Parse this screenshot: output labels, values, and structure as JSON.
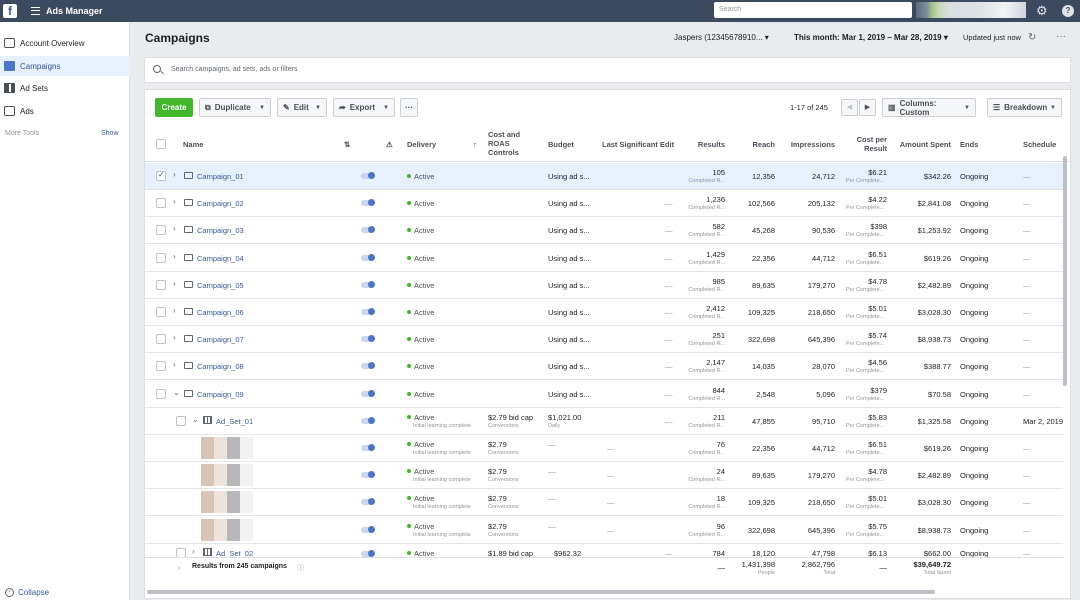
{
  "topbar": {
    "logo": "f",
    "app_title": "Ads Manager",
    "search_placeholder": "Search"
  },
  "sidebar": {
    "items": [
      {
        "label": "Account Overview",
        "icon": "overview-icon"
      },
      {
        "label": "Campaigns",
        "icon": "campaign-icon"
      },
      {
        "label": "Ad Sets",
        "icon": "adsets-icon"
      },
      {
        "label": "Ads",
        "icon": "ads-icon"
      }
    ],
    "more_tools": "More Tools",
    "show": "Show",
    "collapse": "Collapse"
  },
  "header": {
    "title": "Campaigns",
    "account": "Jaspers (12345678910... ▾",
    "date_range": "This month: Mar 1, 2019 – Mar 28, 2019 ▾",
    "updated": "Updated just now"
  },
  "search": {
    "placeholder": "Search campaigns, ad sets, ads or filters"
  },
  "toolbar": {
    "create": "Create",
    "duplicate": "Duplicate",
    "edit": "Edit",
    "export": "Export",
    "more": "···",
    "pagination": "1-17 of 245",
    "columns": "Columns: Custom",
    "breakdown": "Breakdown"
  },
  "columns": {
    "name": "Name",
    "delivery": "Delivery",
    "cost_roas_1": "Cost and",
    "cost_roas_2": "ROAS",
    "cost_roas_3": "Controls",
    "budget": "Budget",
    "last_edit": "Last Significant Edit",
    "results": "Results",
    "reach": "Reach",
    "impressions": "Impressions",
    "cpr_1": "Cost per",
    "cpr_2": "Result",
    "spent": "Amount Spent",
    "ends": "Ends",
    "schedule": "Schedule"
  },
  "campaigns": [
    {
      "name": "Campaign_01",
      "delivery": "Active",
      "budget": "Using ad s...",
      "edit": "",
      "results": "105",
      "reach": "12,356",
      "impressions": "24,712",
      "cpr": "$6.21",
      "spent": "$342.26",
      "ends": "Ongoing",
      "schedule": "—"
    },
    {
      "name": "Campaign_02",
      "delivery": "Active",
      "budget": "Using ad s...",
      "edit": "—",
      "results": "1,236",
      "reach": "102,566",
      "impressions": "205,132",
      "cpr": "$4.22",
      "spent": "$2,841.08",
      "ends": "Ongoing",
      "schedule": "—"
    },
    {
      "name": "Campaign_03",
      "delivery": "Active",
      "budget": "Using ad s...",
      "edit": "—",
      "results": "582",
      "reach": "45,268",
      "impressions": "90,536",
      "cpr": "$398",
      "spent": "$1,253.92",
      "ends": "Ongoing",
      "schedule": "—"
    },
    {
      "name": "Campaign_04",
      "delivery": "Active",
      "budget": "Using ad s...",
      "edit": "—",
      "results": "1,429",
      "reach": "22,356",
      "impressions": "44,712",
      "cpr": "$6.51",
      "spent": "$619.26",
      "ends": "Ongoing",
      "schedule": "—"
    },
    {
      "name": "Campaign_05",
      "delivery": "Active",
      "budget": "Using ad s...",
      "edit": "—",
      "results": "985",
      "reach": "89,635",
      "impressions": "179,270",
      "cpr": "$4.78",
      "spent": "$2,482.89",
      "ends": "Ongoing",
      "schedule": "—"
    },
    {
      "name": "Campaign_06",
      "delivery": "Active",
      "budget": "Using ad s...",
      "edit": "—",
      "results": "2,412",
      "reach": "109,325",
      "impressions": "218,650",
      "cpr": "$5.01",
      "spent": "$3,028.30",
      "ends": "Ongoing",
      "schedule": "—"
    },
    {
      "name": "Campaign_07",
      "delivery": "Active",
      "budget": "Using ad s...",
      "edit": "—",
      "results": "251",
      "reach": "322,698",
      "impressions": "645,396",
      "cpr": "$5.74",
      "spent": "$8,938.73",
      "ends": "Ongoing",
      "schedule": "—"
    },
    {
      "name": "Campaign_08",
      "delivery": "Active",
      "budget": "Using ad s...",
      "edit": "—",
      "results": "2,147",
      "reach": "14,035",
      "impressions": "28,070",
      "cpr": "$4.56",
      "spent": "$388.77",
      "ends": "Ongoing",
      "schedule": "—"
    },
    {
      "name": "Campaign_09",
      "delivery": "Active",
      "budget": "Using ad s...",
      "edit": "—",
      "results": "844",
      "reach": "2,548",
      "impressions": "5,096",
      "cpr": "$379",
      "spent": "$70.58",
      "ends": "Ongoing",
      "schedule": "—"
    }
  ],
  "adset1": {
    "name": "Ad_Set_01",
    "delivery": "Active",
    "delivery_sub": "Initial learning complete",
    "bid": "$2.79 bid cap",
    "bid_sub": "Conversions",
    "budget": "$1,021.00",
    "budget_sub": "Daily",
    "edit": "—",
    "results": "211",
    "reach": "47,855",
    "impressions": "95,710",
    "cpr": "$5.83",
    "spent": "$1,325.58",
    "ends": "Ongoing",
    "schedule": "Mar 2, 2019"
  },
  "ads": [
    {
      "delivery": "Active",
      "delivery_sub": "Initial learning complete",
      "bid": "$2.79",
      "bid_sub": "Conversions",
      "budget": "—",
      "edit": "—",
      "results": "76",
      "reach": "22,356",
      "impressions": "44,712",
      "cpr": "$6.51",
      "spent": "$619.26",
      "ends": "Ongoing",
      "schedule": "—"
    },
    {
      "delivery": "Active",
      "delivery_sub": "Initial learning complete",
      "bid": "$2.79",
      "bid_sub": "Conversions",
      "budget": "—",
      "edit": "—",
      "results": "24",
      "reach": "89,635",
      "impressions": "179,270",
      "cpr": "$4.78",
      "spent": "$2,482.89",
      "ends": "Ongoing",
      "schedule": "—"
    },
    {
      "delivery": "Active",
      "delivery_sub": "Initial learning complete",
      "bid": "$2.79",
      "bid_sub": "Conversions",
      "budget": "—",
      "edit": "—",
      "results": "18",
      "reach": "109,325",
      "impressions": "218,650",
      "cpr": "$5.01",
      "spent": "$3,028.30",
      "ends": "Ongoing",
      "schedule": "—"
    },
    {
      "delivery": "Active",
      "delivery_sub": "Initial learning complete",
      "bid": "$2.79",
      "bid_sub": "Conversions",
      "budget": "—",
      "edit": "—",
      "results": "96",
      "reach": "322,698",
      "impressions": "645,396",
      "cpr": "$5.75",
      "spent": "$8,938.73",
      "ends": "Ongoing",
      "schedule": "—"
    }
  ],
  "adset2": {
    "name": "Ad_Set_02",
    "delivery": "Active",
    "bid": "$1.89 bid cap",
    "budget": "$962.32",
    "edit": "—",
    "results": "784",
    "reach": "18,120",
    "impressions": "47,798",
    "cpr": "$6.13",
    "spent": "$662.00",
    "ends": "Ongoing",
    "schedule": "—"
  },
  "sub_labels": {
    "results": "Completed R...",
    "cpr": "Per Complete..."
  },
  "footer": {
    "label": "Results from 245 campaigns",
    "results": "—",
    "reach": "1,431,398",
    "reach_sub": "People",
    "impressions": "2,862,796",
    "impressions_sub": "Total",
    "cpr": "—",
    "spent": "$39,649.72",
    "spent_sub": "Total Spent"
  }
}
